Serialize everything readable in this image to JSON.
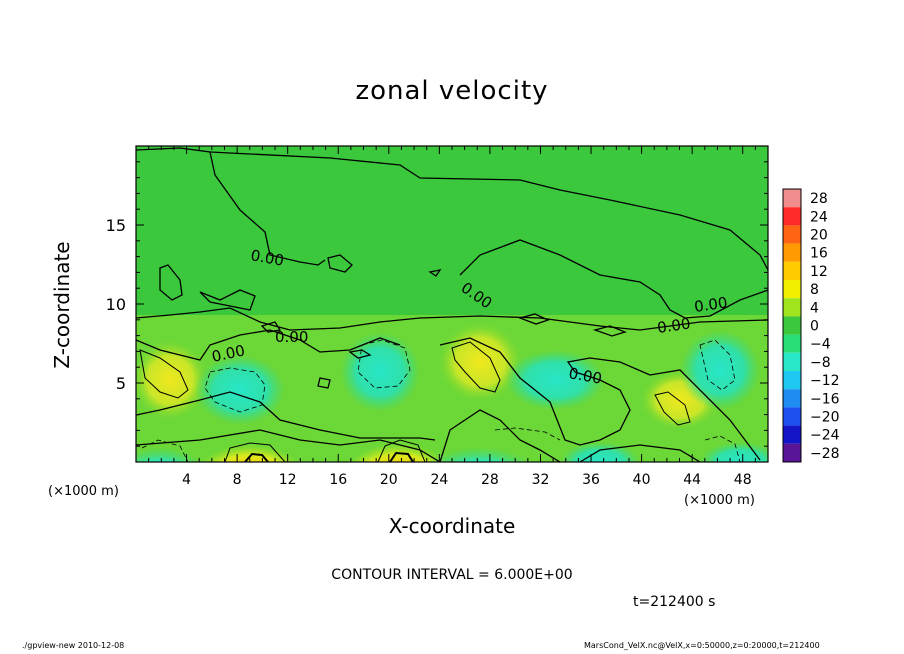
{
  "chart_data": {
    "type": "heatmap",
    "title": "zonal velocity",
    "xlabel": "X-coordinate",
    "ylabel": "Z-coordinate",
    "x_unit": "(×1000 m)",
    "xlim": [
      0,
      50
    ],
    "ylim": [
      0,
      20
    ],
    "x_ticks": [
      "4",
      "8",
      "12",
      "16",
      "20",
      "24",
      "28",
      "32",
      "36",
      "40",
      "44",
      "48"
    ],
    "y_ticks": [
      "5",
      "10",
      "15"
    ],
    "colorbar": {
      "levels": [
        "28",
        "24",
        "20",
        "16",
        "12",
        "8",
        "4",
        "0",
        "−4",
        "−8",
        "−12",
        "−16",
        "−20",
        "−24",
        "−28"
      ],
      "colors": [
        "#f08c8c",
        "#ff2a2a",
        "#ff6414",
        "#ff9a00",
        "#ffcc00",
        "#f0f000",
        "#a0e41e",
        "#3cc83c",
        "#28dc78",
        "#28e6c8",
        "#1ec8f0",
        "#1e8cf0",
        "#1e50f0",
        "#1414c8",
        "#5a1496"
      ]
    },
    "contour_labels": [
      "0.00",
      "0.00",
      "0.00",
      "0.00",
      "0.00",
      "0.00",
      "0.00"
    ],
    "contour_interval": "CONTOUR INTERVAL = 6.000E+00",
    "time_label": "t=212400 s"
  },
  "footer": {
    "left": "./gpview-new  2010-12-08",
    "right": "MarsCond_VelX.nc@VelX,x=0:50000,z=0:20000,t=212400"
  }
}
